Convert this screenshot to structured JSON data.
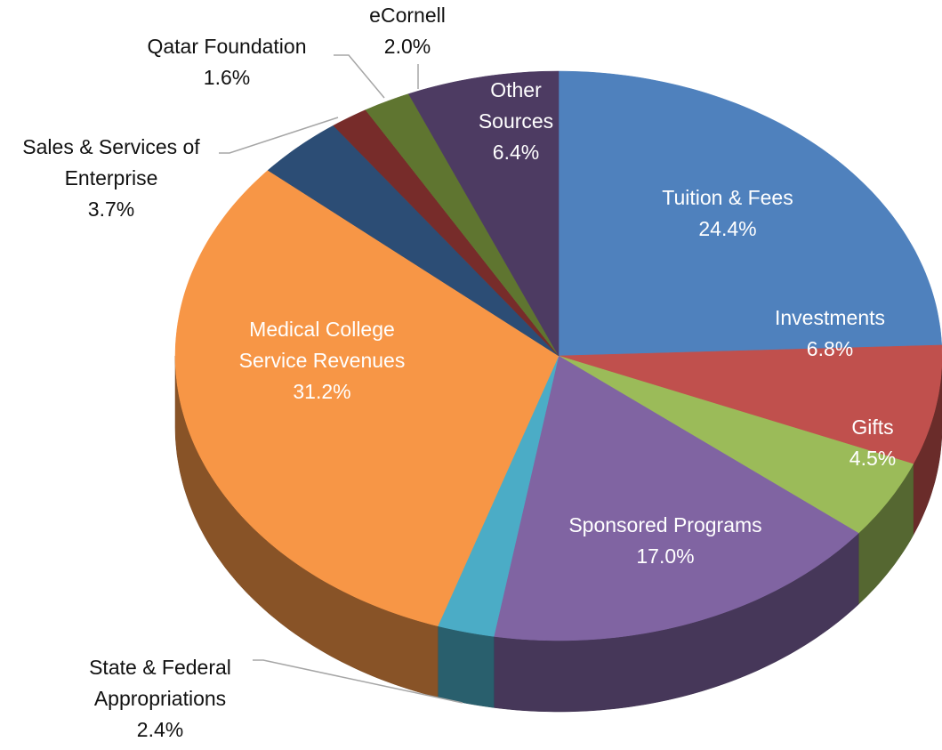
{
  "chart_data": {
    "type": "pie",
    "categories": [
      "Tuition & Fees",
      "Investments",
      "Gifts",
      "Sponsored Programs",
      "State & Federal Appropriations",
      "Medical College Service Revenues",
      "Sales & Services of Enterprise",
      "Qatar Foundation",
      "eCornell",
      "Other Sources"
    ],
    "values": [
      24.4,
      6.8,
      4.5,
      17.0,
      2.4,
      31.2,
      3.7,
      1.6,
      2.0,
      6.4
    ],
    "value_labels": [
      "24.4%",
      "6.8%",
      "4.5%",
      "17.0%",
      "2.4%",
      "31.2%",
      "3.7%",
      "1.6%",
      "2.0%",
      "6.4%"
    ],
    "colors": [
      "#4f81bd",
      "#c0504d",
      "#9bbb59",
      "#8064a2",
      "#4bacc6",
      "#f79646",
      "#2c4d75",
      "#772c2a",
      "#5f7530",
      "#4d3b62"
    ]
  }
}
